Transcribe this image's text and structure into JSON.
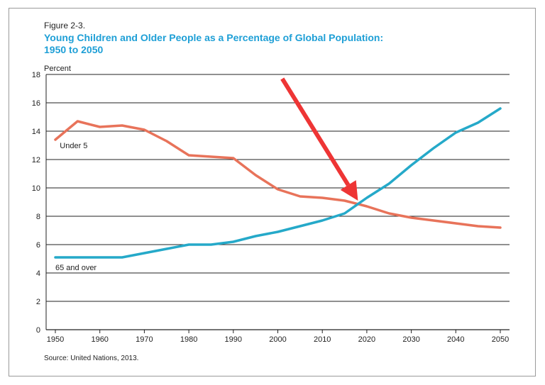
{
  "figure": {
    "label": "Figure 2-3.",
    "title_line1": "Young Children and Older People as a Percentage of Global Population:",
    "title_line2": "1950 to 2050",
    "source": "Source: United Nations, 2013."
  },
  "colors": {
    "under5": "#e8735a",
    "over65": "#25a9c9",
    "arrow": "#ee3535",
    "title": "#1e9fd6",
    "grid": "#222222"
  },
  "chart_data": {
    "type": "line",
    "ylabel": "Percent",
    "xlabel": "",
    "xlim": [
      1950,
      2050
    ],
    "ylim": [
      0,
      18
    ],
    "x_ticks": [
      1950,
      1960,
      1970,
      1980,
      1990,
      2000,
      2010,
      2020,
      2030,
      2040,
      2050
    ],
    "y_ticks": [
      0,
      2,
      4,
      6,
      8,
      10,
      12,
      14,
      16,
      18
    ],
    "grid": true,
    "x": [
      1950,
      1955,
      1960,
      1965,
      1970,
      1975,
      1980,
      1985,
      1990,
      1995,
      2000,
      2005,
      2010,
      2015,
      2020,
      2025,
      2030,
      2035,
      2040,
      2045,
      2050
    ],
    "series": [
      {
        "name": "Under 5",
        "values": [
          13.4,
          14.7,
          14.3,
          14.4,
          14.1,
          13.3,
          12.3,
          12.2,
          12.1,
          10.9,
          9.9,
          9.4,
          9.3,
          9.1,
          8.7,
          8.2,
          7.9,
          7.7,
          7.5,
          7.3,
          7.2
        ]
      },
      {
        "name": "65 and over",
        "values": [
          5.1,
          5.1,
          5.1,
          5.1,
          5.4,
          5.7,
          6.0,
          6.0,
          6.2,
          6.6,
          6.9,
          7.3,
          7.7,
          8.2,
          9.3,
          10.3,
          11.6,
          12.8,
          13.9,
          14.6,
          15.6
        ]
      }
    ],
    "annotations": [
      {
        "type": "arrow",
        "from": [
          2001,
          17.7
        ],
        "to": [
          2018,
          9.1
        ]
      }
    ]
  }
}
